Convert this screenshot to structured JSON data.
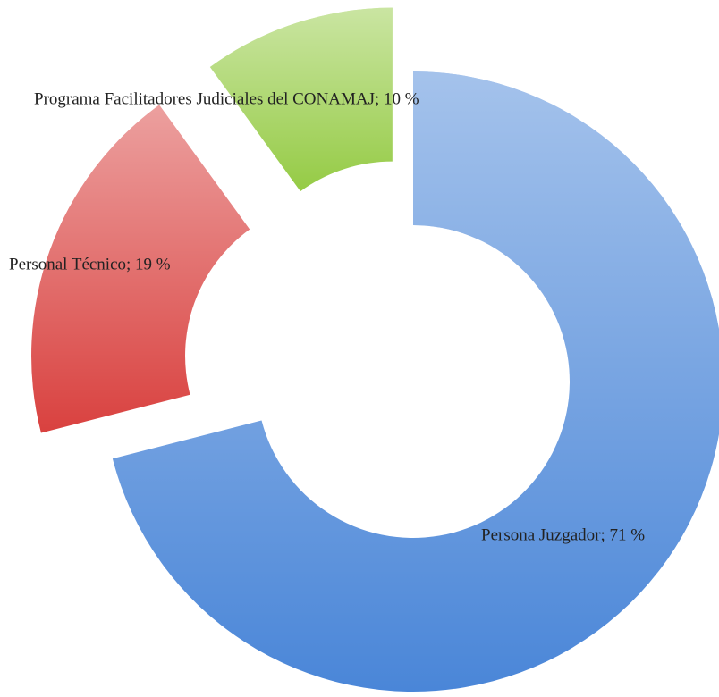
{
  "chart_data": {
    "type": "donut",
    "labels": [
      "Persona Juzgador; 71 %",
      "Personal Técnico; 19 %",
      "Programa Facilitadores Judiciales del CONAMAJ; 10 %"
    ],
    "values": [
      71,
      19,
      10
    ],
    "colors": [
      "#4a86d8",
      "#d9413f",
      "#95cb45"
    ]
  }
}
